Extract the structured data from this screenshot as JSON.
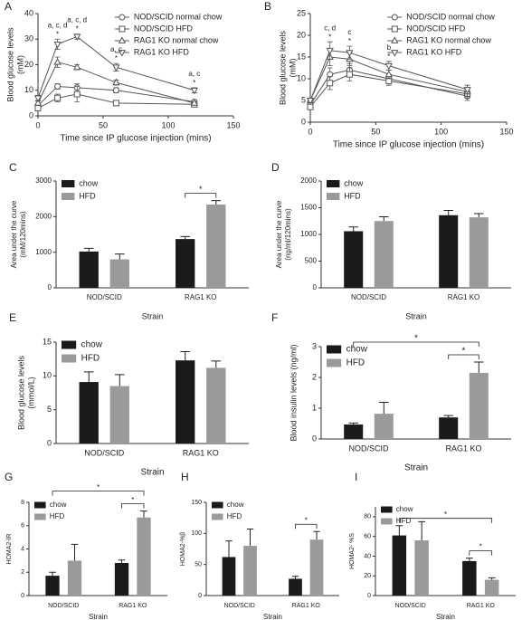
{
  "chart_data": [
    {
      "type": "line",
      "panel": "A",
      "x": [
        0,
        15,
        30,
        60,
        120
      ],
      "xlim": [
        0,
        150
      ],
      "xticks": [
        0,
        50,
        100,
        150
      ],
      "ylim": [
        0,
        40
      ],
      "yticks": [
        0,
        10,
        20,
        30,
        40
      ],
      "ylabel": [
        "Blood glucose levels",
        "(mM)"
      ],
      "xlabel": "Time since IP glucose injection (mins)",
      "legend": "top-right",
      "series": [
        {
          "name": "NOD/SCID normal chow",
          "marker": "circle",
          "color": "#555555",
          "values": [
            4,
            11.5,
            11,
            10,
            5.5
          ],
          "errors": [
            0.5,
            1,
            1.5,
            1,
            0.5
          ]
        },
        {
          "name": "NOD/SCID HFD",
          "marker": "square",
          "color": "#555555",
          "values": [
            3,
            7,
            8.5,
            5,
            4.5
          ],
          "errors": [
            0.5,
            1.5,
            3,
            1,
            0.5
          ]
        },
        {
          "name": "RAG1 KO normal chow",
          "marker": "triangle-up",
          "color": "#555555",
          "values": [
            5,
            21,
            19,
            13,
            5
          ],
          "errors": [
            0.8,
            2,
            1,
            1,
            0.5
          ]
        },
        {
          "name": "RAG1 KO HFD",
          "marker": "triangle-down",
          "color": "#555555",
          "values": [
            7,
            28,
            31,
            19,
            10
          ],
          "errors": [
            1,
            2,
            1,
            1.5,
            1
          ]
        }
      ],
      "annotations": [
        {
          "x": 15,
          "labels": [
            "a, c, d",
            "*"
          ]
        },
        {
          "x": 30,
          "labels": [
            "a, c, d",
            "*"
          ]
        },
        {
          "x": 60,
          "labels": [
            "a, c",
            "*"
          ]
        },
        {
          "x": 120,
          "labels": [
            "a, c",
            "*"
          ]
        }
      ]
    },
    {
      "type": "line",
      "panel": "B",
      "x": [
        0,
        15,
        30,
        60,
        120
      ],
      "xlim": [
        0,
        150
      ],
      "xticks": [
        0,
        50,
        100,
        150
      ],
      "ylim": [
        0,
        25
      ],
      "yticks": [
        0,
        5,
        10,
        15,
        20,
        25
      ],
      "ylabel": [
        "Blood glucose levels",
        "(mM)"
      ],
      "xlabel": "Time since IP glucose injection (mins)",
      "legend": "top-right",
      "series": [
        {
          "name": "NOD/SCID normal chow",
          "marker": "circle",
          "color": "#555555",
          "values": [
            4,
            11,
            12,
            10,
            6
          ],
          "errors": [
            0.5,
            1.5,
            1.5,
            1,
            1
          ]
        },
        {
          "name": "NOD/SCID HFD",
          "marker": "square",
          "color": "#555555",
          "values": [
            3.5,
            9,
            11,
            9.5,
            6.5
          ],
          "errors": [
            0.5,
            1.5,
            1.5,
            1,
            1
          ]
        },
        {
          "name": "RAG1 KO normal chow",
          "marker": "triangle-up",
          "color": "#555555",
          "values": [
            5,
            15,
            14.5,
            11,
            7
          ],
          "errors": [
            0.5,
            2,
            1.5,
            1,
            1
          ]
        },
        {
          "name": "RAG1 KO HFD",
          "marker": "triangle-down",
          "color": "#555555",
          "values": [
            5,
            16.5,
            16,
            13,
            7.5
          ],
          "errors": [
            0.5,
            2,
            1.5,
            1,
            1
          ]
        }
      ],
      "annotations": [
        {
          "x": 15,
          "labels": [
            "c, d",
            "*"
          ]
        },
        {
          "x": 30,
          "labels": [
            "c",
            "*"
          ]
        },
        {
          "x": 60,
          "labels": [
            "b",
            "*"
          ]
        }
      ]
    },
    {
      "type": "bar",
      "panel": "C",
      "categories": [
        "NOD/SCID",
        "RAG1 KO"
      ],
      "ylim": [
        0,
        3000
      ],
      "yticks": [
        0,
        1000,
        2000,
        3000
      ],
      "ylabel": [
        "Area under the curve",
        "(mM/120mins)"
      ],
      "xlabel": "Strain",
      "legend": "top-left",
      "series": [
        {
          "name": "chow",
          "color": "#1a1a1a",
          "values": [
            1020,
            1370
          ],
          "errors": [
            90,
            70
          ]
        },
        {
          "name": "HFD",
          "color": "#9a9a9a",
          "values": [
            800,
            2340
          ],
          "errors": [
            150,
            110
          ]
        }
      ],
      "brackets": [
        {
          "label": "*",
          "from": [
            0,
            1
          ],
          "to": [
            1,
            1
          ]
        }
      ]
    },
    {
      "type": "bar",
      "panel": "D",
      "categories": [
        "NOD/SCID",
        "RAG1 KO"
      ],
      "ylim": [
        0,
        2000
      ],
      "yticks": [
        0,
        500,
        1000,
        1500,
        2000
      ],
      "ylabel": [
        "Area under the curve",
        "(ng/ml/120mins)"
      ],
      "xlabel": "Strain",
      "legend": "top-left",
      "series": [
        {
          "name": "chow",
          "color": "#1a1a1a",
          "values": [
            1060,
            1360
          ],
          "errors": [
            80,
            90
          ]
        },
        {
          "name": "HFD",
          "color": "#9a9a9a",
          "values": [
            1250,
            1320
          ],
          "errors": [
            80,
            70
          ]
        }
      ],
      "brackets": []
    },
    {
      "type": "bar",
      "panel": "E",
      "categories": [
        "NOD/SCID",
        "RAG1 KO"
      ],
      "ylim": [
        0,
        15
      ],
      "yticks": [
        0,
        5,
        10,
        15
      ],
      "ylabel": [
        "Blood glucose levels",
        "(mmol/L)"
      ],
      "xlabel": "Strain",
      "legend": "top-left",
      "series": [
        {
          "name": "chow",
          "color": "#1a1a1a",
          "values": [
            9.1,
            12.3
          ],
          "errors": [
            1.5,
            1.3
          ]
        },
        {
          "name": "HFD",
          "color": "#9a9a9a",
          "values": [
            8.5,
            11.2
          ],
          "errors": [
            1.7,
            1
          ]
        }
      ],
      "brackets": []
    },
    {
      "type": "bar",
      "panel": "F",
      "categories": [
        "NOD/SCID",
        "RAG1 KO"
      ],
      "ylim": [
        0,
        3
      ],
      "yticks": [
        0,
        1,
        2,
        3
      ],
      "ylabel": [
        "Blood insulin levels (ng/ml)"
      ],
      "xlabel": "Strain",
      "legend": "top-left",
      "series": [
        {
          "name": "chow",
          "color": "#1a1a1a",
          "values": [
            0.47,
            0.7
          ],
          "errors": [
            0.05,
            0.06
          ]
        },
        {
          "name": "HFD",
          "color": "#9a9a9a",
          "values": [
            0.82,
            2.15
          ],
          "errors": [
            0.37,
            0.35
          ]
        }
      ],
      "brackets": [
        {
          "label": "*",
          "from": [
            0,
            1
          ],
          "to": [
            1,
            1
          ]
        },
        {
          "label": "*",
          "from": [
            0,
            0
          ],
          "to": [
            1,
            1
          ]
        }
      ]
    },
    {
      "type": "bar",
      "panel": "G",
      "categories": [
        "NOD/SCID",
        "RAG1 KO"
      ],
      "ylim": [
        0,
        8
      ],
      "yticks": [
        0,
        2,
        4,
        6,
        8
      ],
      "ylabel": [
        "HOMA2-IR"
      ],
      "xlabel": "Strain",
      "legend": "top-left",
      "series": [
        {
          "name": "chow",
          "color": "#1a1a1a",
          "values": [
            1.7,
            2.8
          ],
          "errors": [
            0.3,
            0.25
          ]
        },
        {
          "name": "HFD",
          "color": "#9a9a9a",
          "values": [
            3.0,
            6.7
          ],
          "errors": [
            1.4,
            0.55
          ]
        }
      ],
      "brackets": [
        {
          "label": "*",
          "from": [
            0,
            1
          ],
          "to": [
            1,
            1
          ]
        },
        {
          "label": "*",
          "from": [
            0,
            0
          ],
          "to": [
            1,
            1
          ]
        }
      ]
    },
    {
      "type": "bar",
      "panel": "H",
      "categories": [
        "NOD/SCID",
        "RAG1 KO"
      ],
      "ylim": [
        0,
        150
      ],
      "yticks": [
        0,
        50,
        100,
        150
      ],
      "ylabel": [
        "HOMA2-%β"
      ],
      "xlabel": "Strain",
      "legend": "top-left",
      "series": [
        {
          "name": "chow",
          "color": "#1a1a1a",
          "values": [
            62,
            27
          ],
          "errors": [
            26,
            4
          ]
        },
        {
          "name": "HFD",
          "color": "#9a9a9a",
          "values": [
            80,
            90
          ],
          "errors": [
            27,
            13
          ]
        }
      ],
      "brackets": [
        {
          "label": "*",
          "from": [
            0,
            1
          ],
          "to": [
            1,
            1
          ]
        }
      ]
    },
    {
      "type": "bar",
      "panel": "I",
      "categories": [
        "NOD/SCID",
        "RAG1 KO"
      ],
      "ylim": [
        0,
        90
      ],
      "yticks": [
        0,
        20,
        40,
        60,
        80
      ],
      "ylabel": [
        "HOMA2- %S"
      ],
      "xlabel": "Strain",
      "legend": "top-left",
      "series": [
        {
          "name": "chow",
          "color": "#1a1a1a",
          "values": [
            61,
            35
          ],
          "errors": [
            10,
            3
          ]
        },
        {
          "name": "HFD",
          "color": "#9a9a9a",
          "values": [
            56,
            16
          ],
          "errors": [
            19,
            2
          ]
        }
      ],
      "brackets": [
        {
          "label": "*",
          "from": [
            0,
            1
          ],
          "to": [
            1,
            1
          ]
        },
        {
          "label": "*",
          "from": [
            0,
            0
          ],
          "to": [
            1,
            1
          ]
        }
      ]
    }
  ]
}
